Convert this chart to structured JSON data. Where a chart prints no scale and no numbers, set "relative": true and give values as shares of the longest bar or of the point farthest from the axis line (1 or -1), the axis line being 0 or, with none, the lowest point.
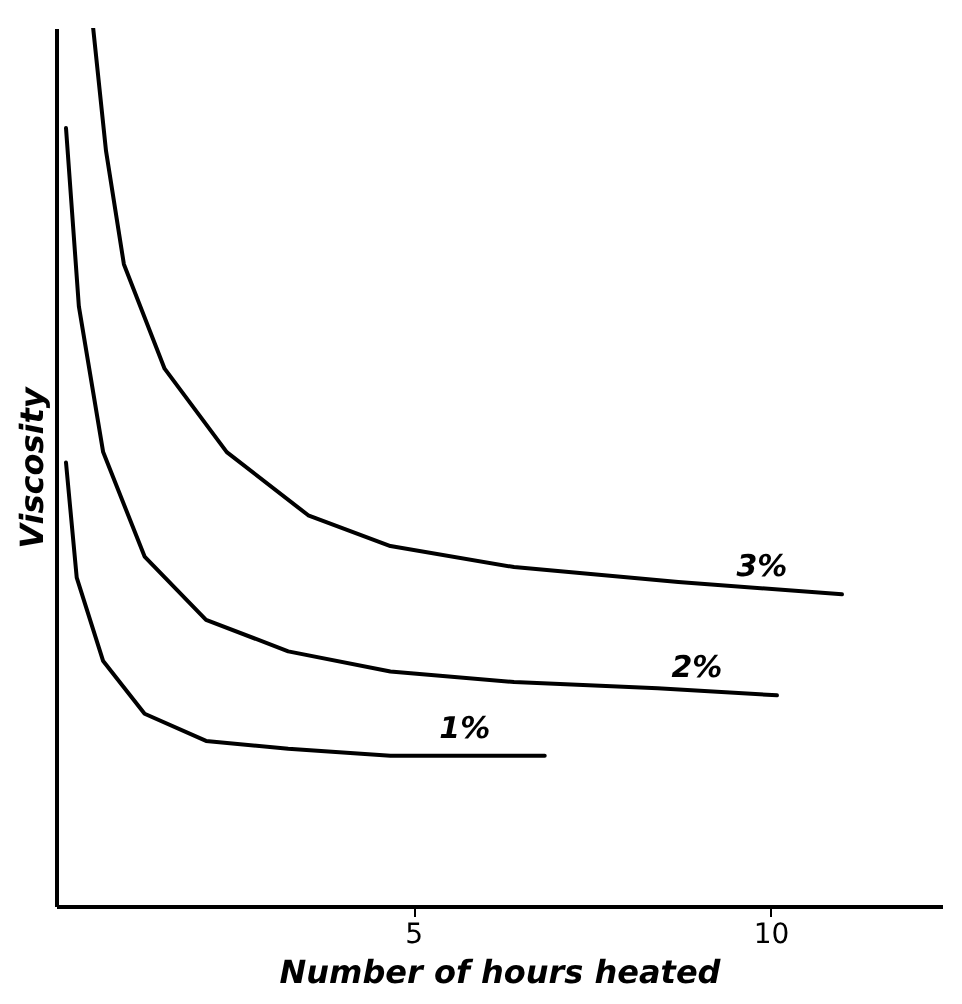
{
  "chart_data": {
    "type": "line",
    "relative": true,
    "xlabel": "Number of hours heated",
    "ylabel": "Viscosity",
    "xlim": [
      0,
      12.4
    ],
    "xticks": [
      5,
      10
    ],
    "grid": false,
    "legend": false,
    "marker": "none",
    "line_style": "solid",
    "series": [
      {
        "name": "3%",
        "color": "#000000",
        "x": [
          0.52,
          0.7,
          0.95,
          1.52,
          2.39,
          3.53,
          4.68,
          6.41,
          8.71,
          11.0
        ],
        "values": [
          1.0,
          0.86,
          0.731,
          0.612,
          0.517,
          0.445,
          0.41,
          0.386,
          0.369,
          0.355
        ]
      },
      {
        "name": "2%",
        "color": "#000000",
        "x": [
          0.14,
          0.32,
          0.66,
          1.24,
          2.1,
          3.25,
          4.68,
          6.41,
          8.42,
          10.09
        ],
        "values": [
          0.886,
          0.683,
          0.517,
          0.398,
          0.326,
          0.29,
          0.267,
          0.255,
          0.248,
          0.24
        ]
      },
      {
        "name": "1%",
        "color": "#000000",
        "x": [
          0.14,
          0.29,
          0.66,
          1.24,
          2.1,
          3.25,
          4.68,
          6.84
        ],
        "values": [
          0.505,
          0.374,
          0.279,
          0.219,
          0.188,
          0.179,
          0.171,
          0.171
        ]
      }
    ]
  }
}
